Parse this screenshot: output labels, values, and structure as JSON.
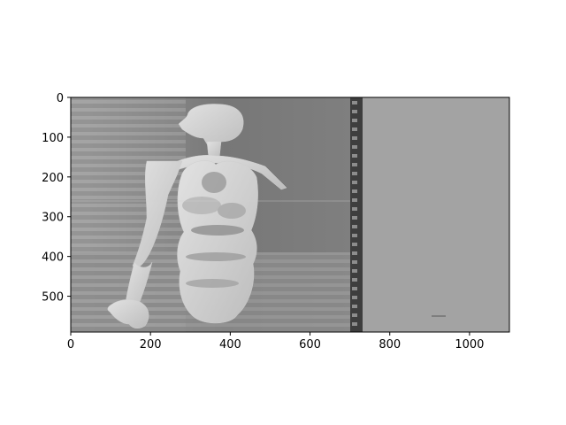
{
  "figure": {
    "background": "#ffffff",
    "x_axis": {
      "ticks": [
        0,
        200,
        400,
        600,
        800,
        1000
      ],
      "labels": [
        "0",
        "200",
        "400",
        "600",
        "800",
        "1000"
      ],
      "range": [
        0,
        1100
      ]
    },
    "y_axis": {
      "ticks": [
        0,
        100,
        200,
        300,
        400,
        500
      ],
      "labels": [
        "0",
        "100",
        "200",
        "300",
        "400",
        "500"
      ],
      "range": [
        590,
        0
      ],
      "inverted": true
    },
    "image": {
      "colormap": "gray",
      "content": "grayscale scan image of a human torso, head and arm with striped artifacts",
      "fill_color": "#a3a3a3"
    }
  }
}
